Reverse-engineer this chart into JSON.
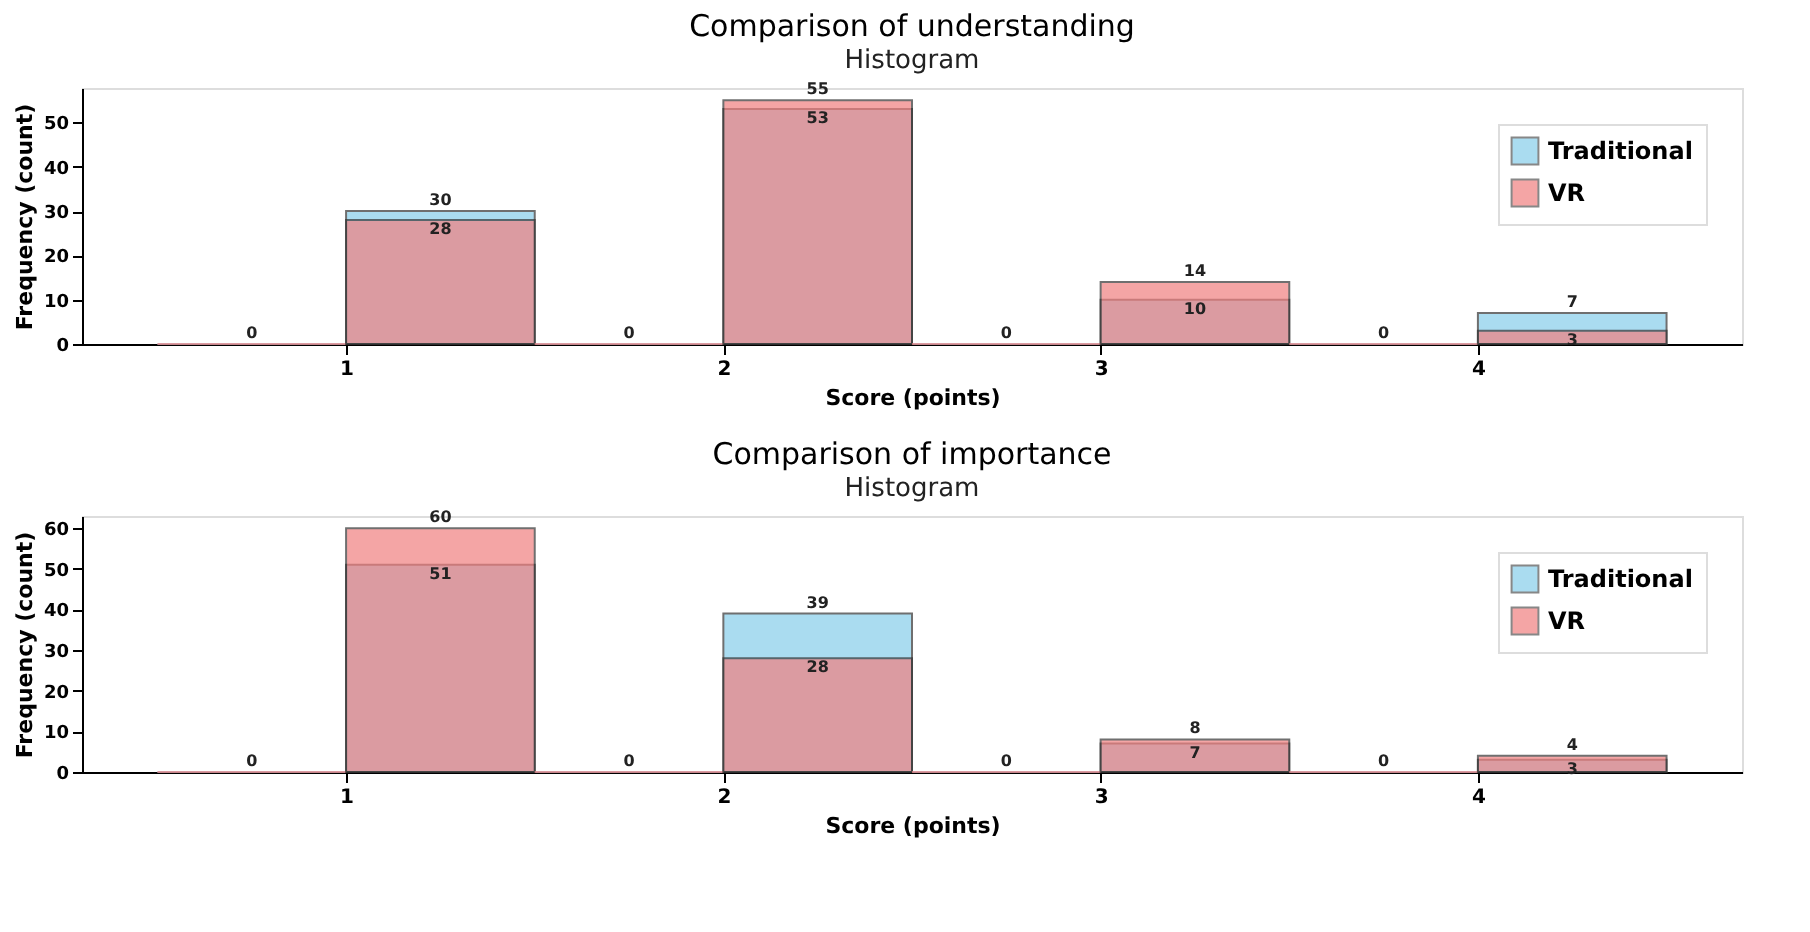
{
  "chart_data": [
    {
      "type": "histogram",
      "title": "Comparison of understanding",
      "subtitle": "Histogram",
      "xlabel": "Score (points)",
      "ylabel": "Frequency (count)",
      "bins": [
        0.5,
        1,
        1.5,
        2,
        2.5,
        3,
        3.5,
        4,
        4.5
      ],
      "series": [
        {
          "name": "Traditional",
          "color": "#87ceeb",
          "values": [
            0,
            30,
            0,
            53,
            0,
            10,
            0,
            7
          ],
          "value_labels": [
            "0",
            "30",
            "0",
            "53",
            "0",
            "10",
            "0",
            "7"
          ]
        },
        {
          "name": "VR",
          "color": "#f08080",
          "values": [
            0,
            28,
            0,
            55,
            0,
            14,
            0,
            3
          ],
          "value_labels": [
            null,
            "28",
            null,
            "55",
            null,
            "14",
            null,
            "3"
          ]
        }
      ],
      "xlim": [
        0.3,
        4.7
      ],
      "xticks": [
        1,
        2,
        3,
        4
      ],
      "ylim": [
        0,
        57.75
      ],
      "yticks": [
        0,
        10,
        20,
        30,
        40,
        50
      ],
      "legend": "top right"
    },
    {
      "type": "histogram",
      "title": "Comparison of importance",
      "subtitle": "Histogram",
      "xlabel": "Score (points)",
      "ylabel": "Frequency (count)",
      "bins": [
        0.5,
        1,
        1.5,
        2,
        2.5,
        3,
        3.5,
        4,
        4.5
      ],
      "series": [
        {
          "name": "Traditional",
          "color": "#87ceeb",
          "values": [
            0,
            51,
            0,
            39,
            0,
            7,
            0,
            3
          ],
          "value_labels": [
            "0",
            "51",
            "0",
            "39",
            "0",
            "7",
            "0",
            "3"
          ]
        },
        {
          "name": "VR",
          "color": "#f08080",
          "values": [
            0,
            60,
            0,
            28,
            0,
            8,
            0,
            4
          ],
          "value_labels": [
            null,
            "60",
            null,
            "28",
            null,
            "8",
            null,
            "4"
          ]
        }
      ],
      "xlim": [
        0.3,
        4.7
      ],
      "xticks": [
        1,
        2,
        3,
        4
      ],
      "ylim": [
        0,
        63
      ],
      "yticks": [
        0,
        10,
        20,
        30,
        40,
        50,
        60
      ],
      "legend": "top right"
    }
  ]
}
